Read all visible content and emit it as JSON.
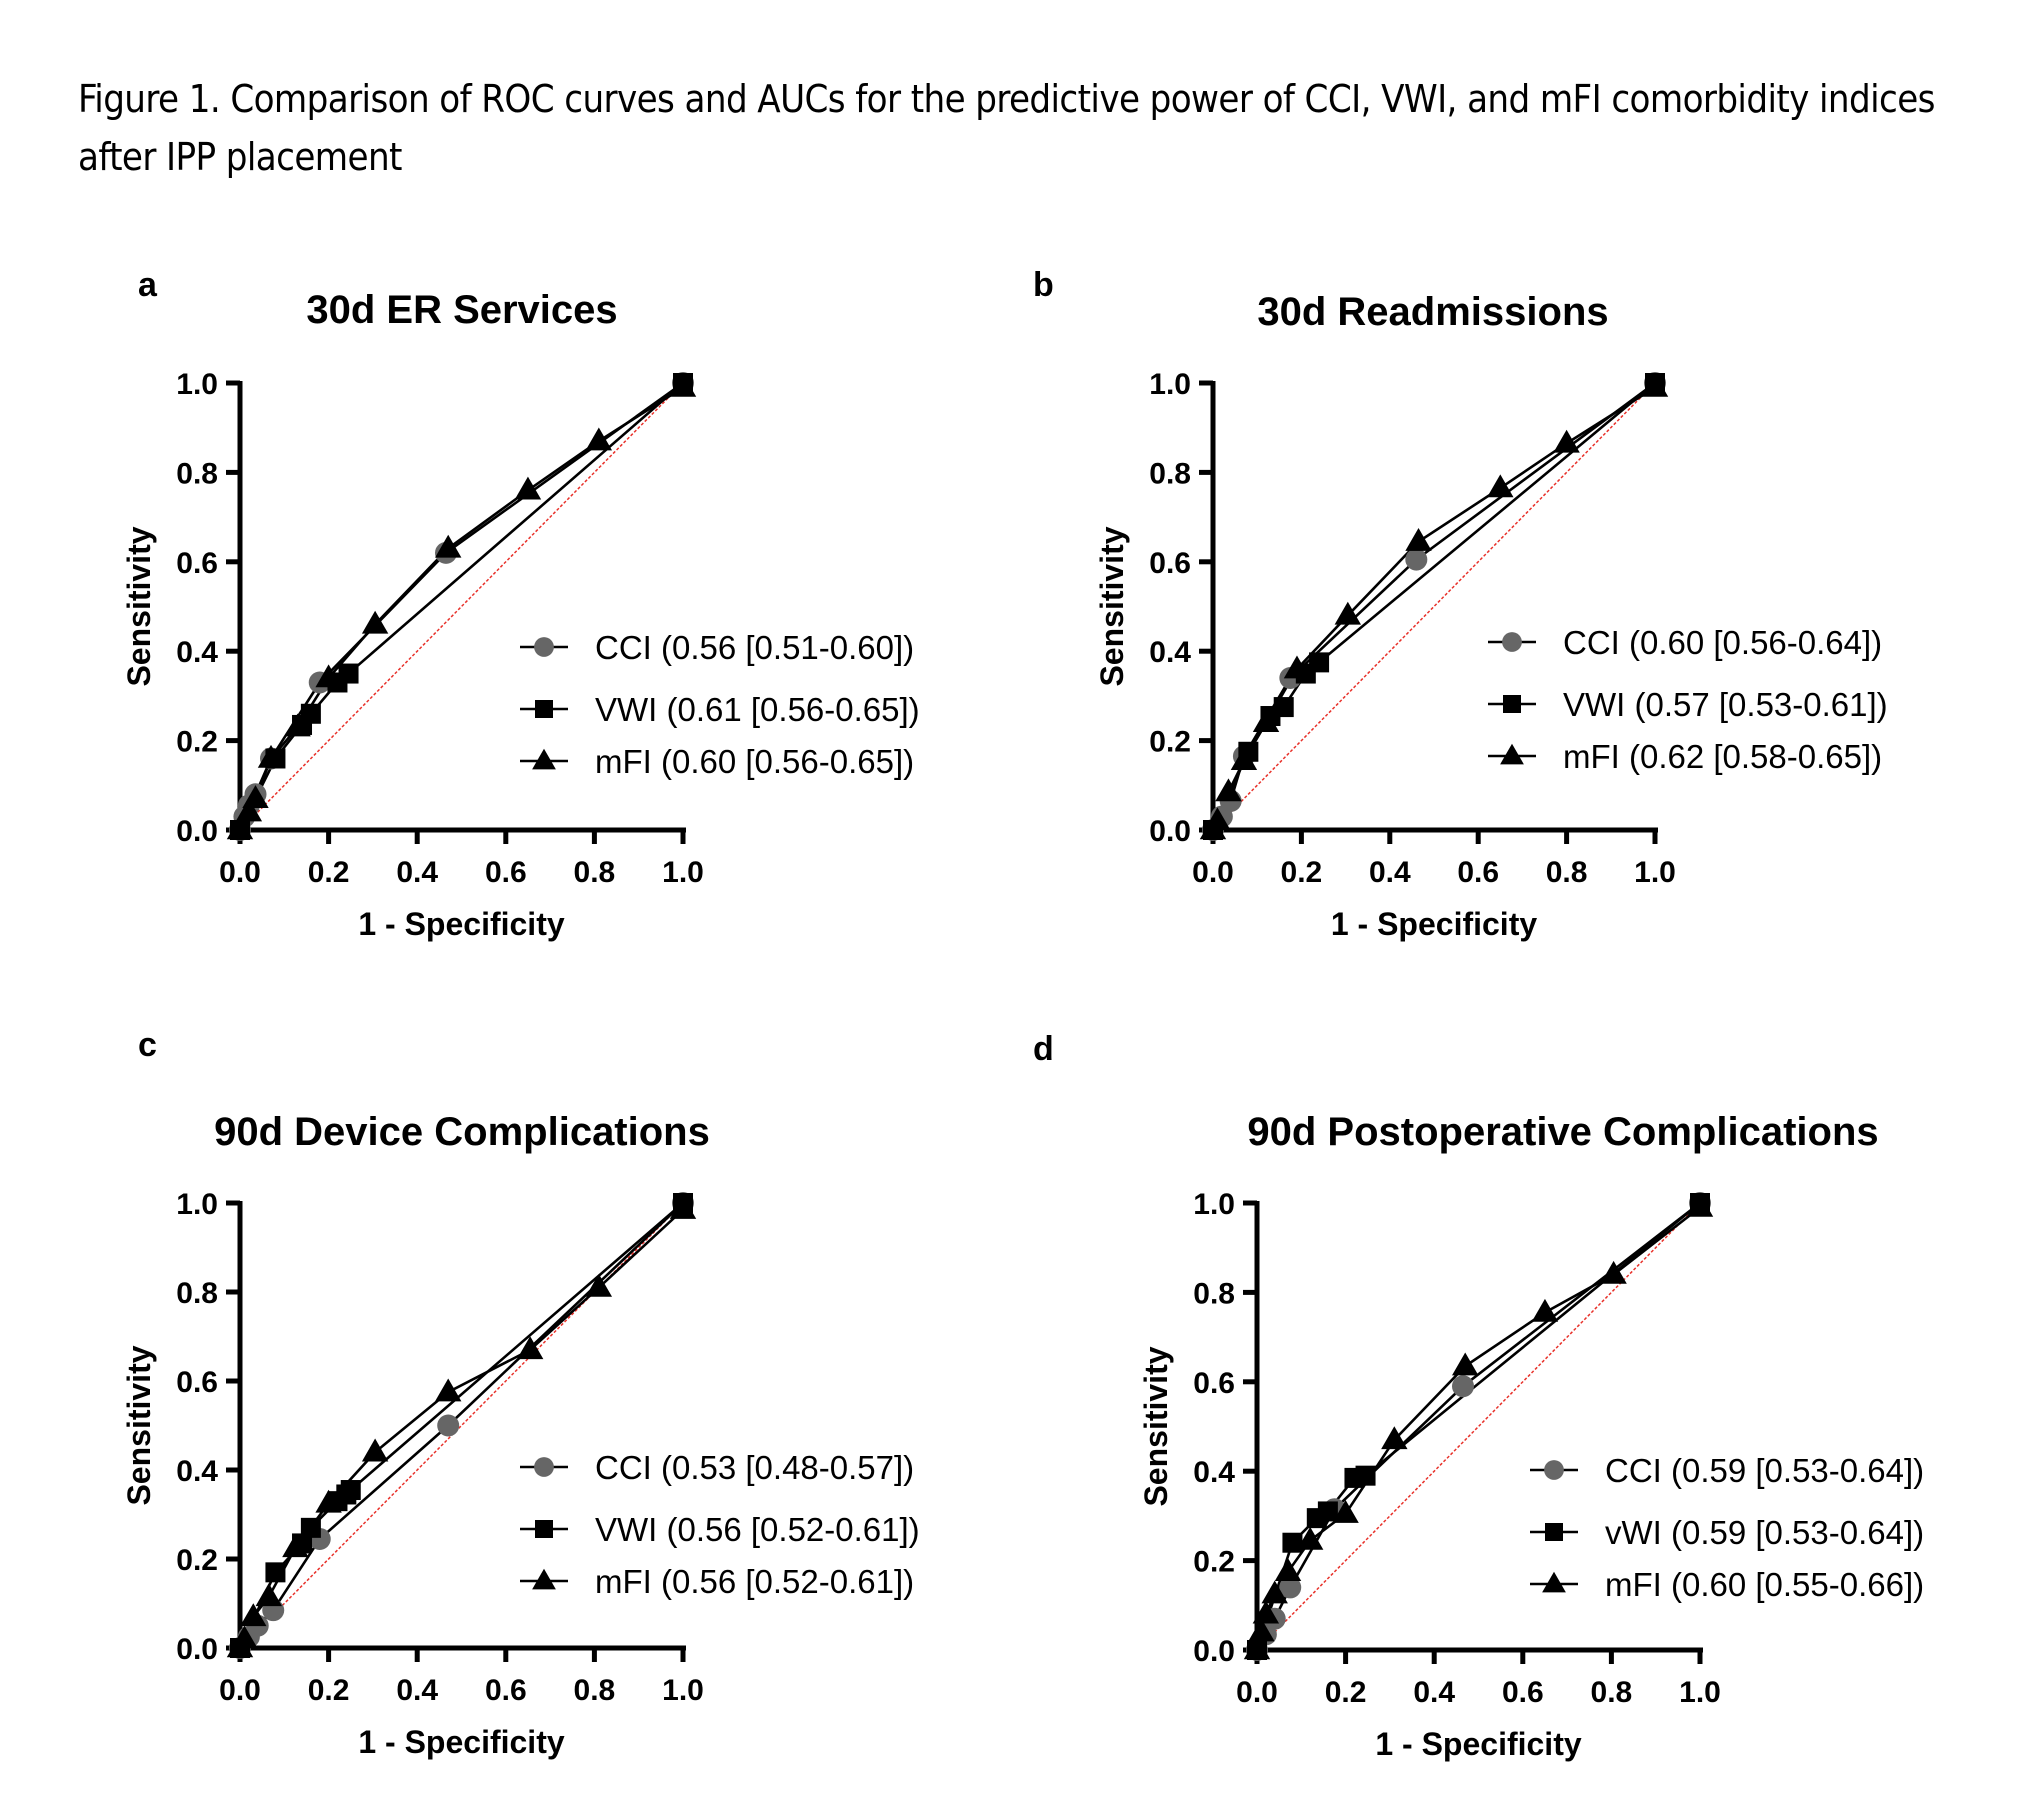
{
  "figure": {
    "title": "Figure 1. Comparison of ROC curves and AUCs for the predictive power of CCI, VWI, and mFI comorbidity indices after IPP placement"
  },
  "colors": {
    "line": "#000000",
    "cci_marker": "#666666",
    "vwi_marker": "#000000",
    "mfi_marker": "#000000",
    "reference_line": "#e8312a"
  },
  "chart_data": [
    {
      "panel": "a",
      "type": "line",
      "title": "30d ER Services",
      "xlabel": "1 - Specificity",
      "ylabel": "Sensitivity",
      "xlim": [
        0,
        1
      ],
      "ylim": [
        0,
        1
      ],
      "xticks": [
        "0.0",
        "0.2",
        "0.4",
        "0.6",
        "0.8",
        "1.0"
      ],
      "yticks": [
        "0.0",
        "0.2",
        "0.4",
        "0.6",
        "0.8",
        "1.0"
      ],
      "grid": false,
      "legend_position": "center-right",
      "reference_line": {
        "x": [
          0,
          1
        ],
        "y": [
          0,
          1
        ]
      },
      "series": [
        {
          "name": "CCI",
          "legend": "CCI (0.56 [0.51-0.60])",
          "marker": "circle",
          "x": [
            0.0,
            0.01,
            0.02,
            0.035,
            0.07,
            0.18,
            0.465,
            1.0
          ],
          "y": [
            0.0,
            0.03,
            0.055,
            0.08,
            0.16,
            0.33,
            0.62,
            1.0
          ]
        },
        {
          "name": "VWI",
          "legend": "VWI (0.61 [0.56-0.65])",
          "marker": "square",
          "x": [
            0.0,
            0.08,
            0.14,
            0.16,
            0.22,
            0.245,
            1.0
          ],
          "y": [
            0.0,
            0.16,
            0.235,
            0.26,
            0.33,
            0.35,
            1.0
          ]
        },
        {
          "name": "mFI",
          "legend": "mFI (0.60 [0.56-0.65])",
          "marker": "triangle",
          "x": [
            0.0,
            0.02,
            0.035,
            0.07,
            0.13,
            0.2,
            0.305,
            0.47,
            0.65,
            0.81,
            1.0
          ],
          "y": [
            0.0,
            0.04,
            0.07,
            0.16,
            0.23,
            0.34,
            0.46,
            0.63,
            0.76,
            0.87,
            0.99
          ]
        }
      ]
    },
    {
      "panel": "b",
      "type": "line",
      "title": "30d Readmissions",
      "xlabel": "1 - Specificity",
      "ylabel": "Sensitivity",
      "xlim": [
        0,
        1
      ],
      "ylim": [
        0,
        1
      ],
      "xticks": [
        "0.0",
        "0.2",
        "0.4",
        "0.6",
        "0.8",
        "1.0"
      ],
      "yticks": [
        "0.0",
        "0.2",
        "0.4",
        "0.6",
        "0.8",
        "1.0"
      ],
      "grid": false,
      "legend_position": "center-right",
      "reference_line": {
        "x": [
          0,
          1
        ],
        "y": [
          0,
          1
        ]
      },
      "series": [
        {
          "name": "CCI",
          "legend": "CCI (0.60 [0.56-0.64])",
          "marker": "circle",
          "x": [
            0.0,
            0.02,
            0.04,
            0.07,
            0.175,
            0.46,
            1.0
          ],
          "y": [
            0.0,
            0.03,
            0.065,
            0.165,
            0.34,
            0.605,
            1.0
          ]
        },
        {
          "name": "VWI",
          "legend": "VWI (0.57 [0.53-0.61])",
          "marker": "square",
          "x": [
            0.0,
            0.08,
            0.13,
            0.16,
            0.21,
            0.24,
            1.0
          ],
          "y": [
            0.0,
            0.175,
            0.255,
            0.275,
            0.35,
            0.375,
            1.0
          ]
        },
        {
          "name": "mFI",
          "legend": "mFI (0.62 [0.58-0.65])",
          "marker": "triangle",
          "x": [
            0.0,
            0.01,
            0.035,
            0.07,
            0.12,
            0.19,
            0.305,
            0.465,
            0.65,
            0.8,
            1.0
          ],
          "y": [
            0.0,
            0.02,
            0.085,
            0.155,
            0.24,
            0.36,
            0.48,
            0.645,
            0.765,
            0.865,
            0.99
          ]
        }
      ]
    },
    {
      "panel": "c",
      "type": "line",
      "title": "90d Device Complications",
      "xlabel": "1 - Specificity",
      "ylabel": "Sensitivity",
      "xlim": [
        0,
        1
      ],
      "ylim": [
        0,
        1
      ],
      "xticks": [
        "0.0",
        "0.2",
        "0.4",
        "0.6",
        "0.8",
        "1.0"
      ],
      "yticks": [
        "0.0",
        "0.2",
        "0.4",
        "0.6",
        "0.8",
        "1.0"
      ],
      "grid": false,
      "legend_position": "center-right",
      "reference_line": {
        "x": [
          0,
          1
        ],
        "y": [
          0,
          1
        ]
      },
      "series": [
        {
          "name": "CCI",
          "legend": "CCI (0.53 [0.48-0.57])",
          "marker": "circle",
          "x": [
            0.0,
            0.02,
            0.04,
            0.075,
            0.18,
            0.47,
            1.0
          ],
          "y": [
            0.0,
            0.025,
            0.05,
            0.085,
            0.245,
            0.5,
            1.0
          ]
        },
        {
          "name": "VWI",
          "legend": "VWI (0.56 [0.52-0.61])",
          "marker": "square",
          "x": [
            0.0,
            0.08,
            0.14,
            0.16,
            0.22,
            0.24,
            0.25,
            1.0
          ],
          "y": [
            0.0,
            0.17,
            0.235,
            0.27,
            0.33,
            0.345,
            0.355,
            1.0
          ]
        },
        {
          "name": "mFI",
          "legend": "mFI (0.56 [0.52-0.61])",
          "marker": "triangle",
          "x": [
            0.0,
            0.01,
            0.03,
            0.065,
            0.125,
            0.2,
            0.305,
            0.47,
            0.655,
            0.81,
            1.0
          ],
          "y": [
            0.0,
            0.02,
            0.07,
            0.115,
            0.225,
            0.325,
            0.44,
            0.575,
            0.67,
            0.81,
            0.985
          ]
        }
      ]
    },
    {
      "panel": "d",
      "type": "line",
      "title": "90d Postoperative Complications",
      "xlabel": "1 - Specificity",
      "ylabel": "Sensitivity",
      "xlim": [
        0,
        1
      ],
      "ylim": [
        0,
        1
      ],
      "xticks": [
        "0.0",
        "0.2",
        "0.4",
        "0.6",
        "0.8",
        "1.0"
      ],
      "yticks": [
        "0.0",
        "0.2",
        "0.4",
        "0.6",
        "0.8",
        "1.0"
      ],
      "grid": false,
      "legend_position": "center-right",
      "reference_line": {
        "x": [
          0,
          1
        ],
        "y": [
          0,
          1
        ]
      },
      "series": [
        {
          "name": "CCI",
          "legend": "CCI (0.59 [0.53-0.64])",
          "marker": "circle",
          "x": [
            0.0,
            0.02,
            0.04,
            0.075,
            0.175,
            0.465,
            1.0
          ],
          "y": [
            0.0,
            0.035,
            0.07,
            0.14,
            0.315,
            0.59,
            1.0
          ]
        },
        {
          "name": "vWI",
          "legend": "vWI (0.59 [0.53-0.64])",
          "marker": "square",
          "x": [
            0.0,
            0.08,
            0.135,
            0.16,
            0.22,
            0.245,
            1.0
          ],
          "y": [
            0.0,
            0.24,
            0.295,
            0.31,
            0.385,
            0.39,
            1.0
          ]
        },
        {
          "name": "mFI",
          "legend": "mFI (0.60 [0.55-0.66])",
          "marker": "triangle",
          "x": [
            0.0,
            0.01,
            0.02,
            0.04,
            0.07,
            0.12,
            0.2,
            0.31,
            0.47,
            0.65,
            0.805,
            1.0
          ],
          "y": [
            0.0,
            0.04,
            0.08,
            0.125,
            0.175,
            0.245,
            0.305,
            0.47,
            0.635,
            0.755,
            0.84,
            0.99
          ]
        }
      ]
    }
  ]
}
